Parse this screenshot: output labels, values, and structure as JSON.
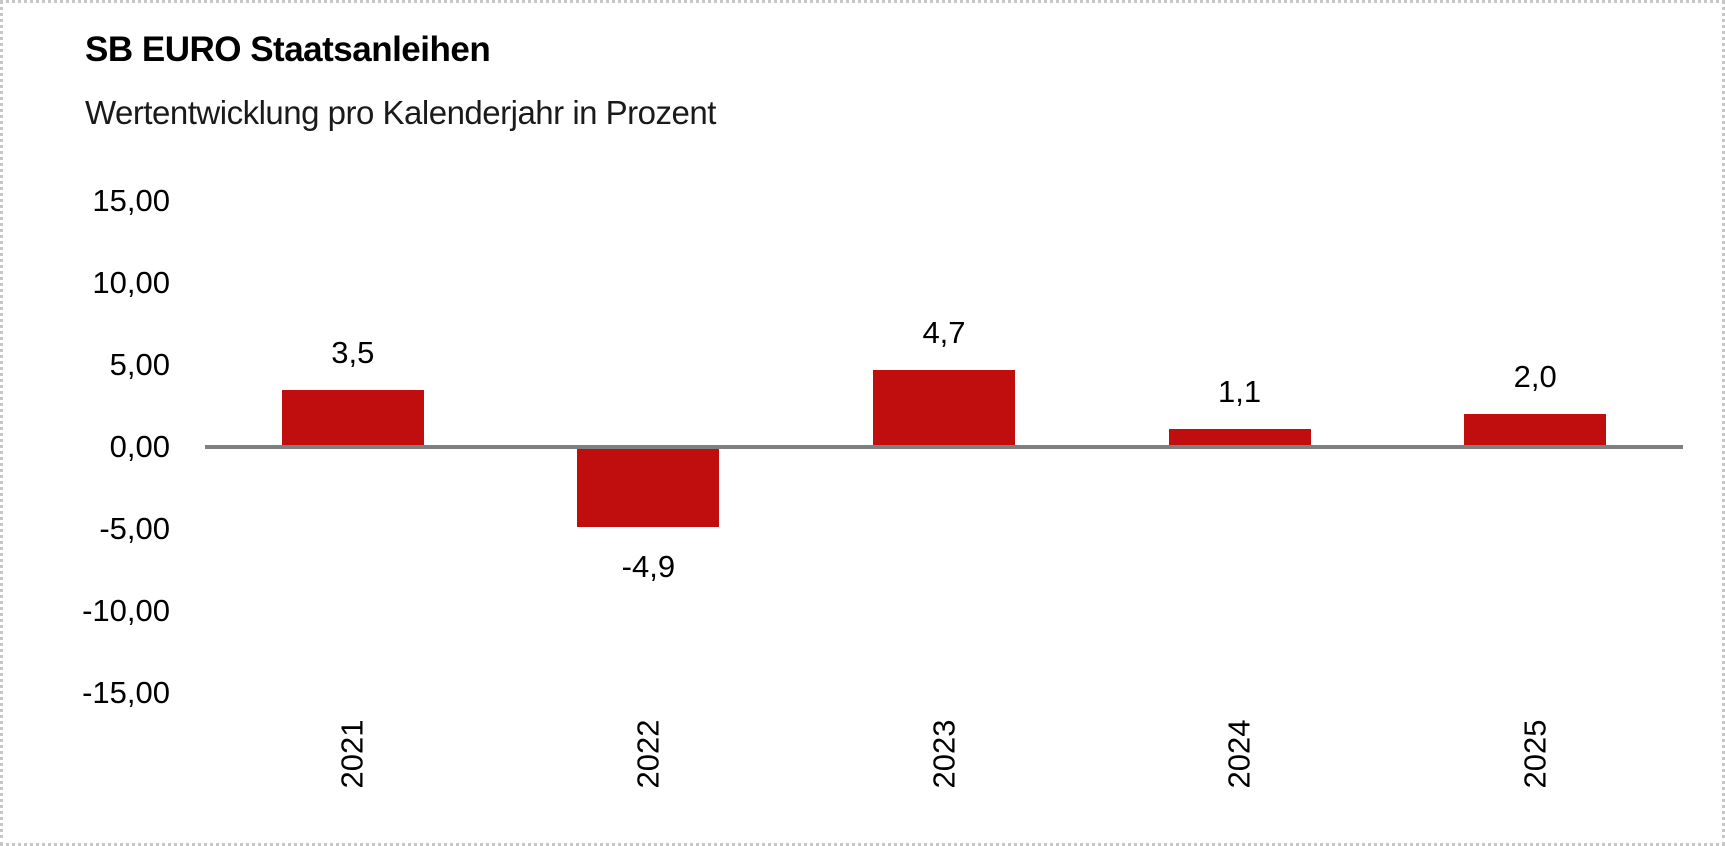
{
  "frame": {
    "background": "#ffffff",
    "border_color": "#c7c7c7"
  },
  "header": {
    "title": "SB EURO Staatsanleihen",
    "subtitle": "Wertentwicklung pro Kalenderjahr in Prozent"
  },
  "chart_data": {
    "type": "bar",
    "title": "SB EURO Staatsanleihen",
    "subtitle": "Wertentwicklung pro Kalenderjahr in Prozent",
    "categories": [
      "2021",
      "2022",
      "2023",
      "2024",
      "2025"
    ],
    "values": [
      3.5,
      -4.9,
      4.7,
      1.1,
      2.0
    ],
    "value_labels": [
      "3,5",
      "-4,9",
      "4,7",
      "1,1",
      "2,0"
    ],
    "xlabel": "",
    "ylabel": "",
    "ylim": [
      -15,
      15
    ],
    "ytick_interval": 5,
    "y_axis": {
      "ticks": [
        {
          "value": 15,
          "label": "15,00"
        },
        {
          "value": 10,
          "label": "10,00"
        },
        {
          "value": 5,
          "label": "5,00"
        },
        {
          "value": 0,
          "label": "0,00"
        },
        {
          "value": -5,
          "label": "-5,00"
        },
        {
          "value": -10,
          "label": "-10,00"
        },
        {
          "value": -15,
          "label": "-15,00"
        }
      ]
    },
    "x_tick_rotation_degrees": -90,
    "grid": false,
    "legend": false,
    "bar_color": "#c00d0d",
    "axis_line_color": "#7f7f7f",
    "label_color": "#000000"
  }
}
